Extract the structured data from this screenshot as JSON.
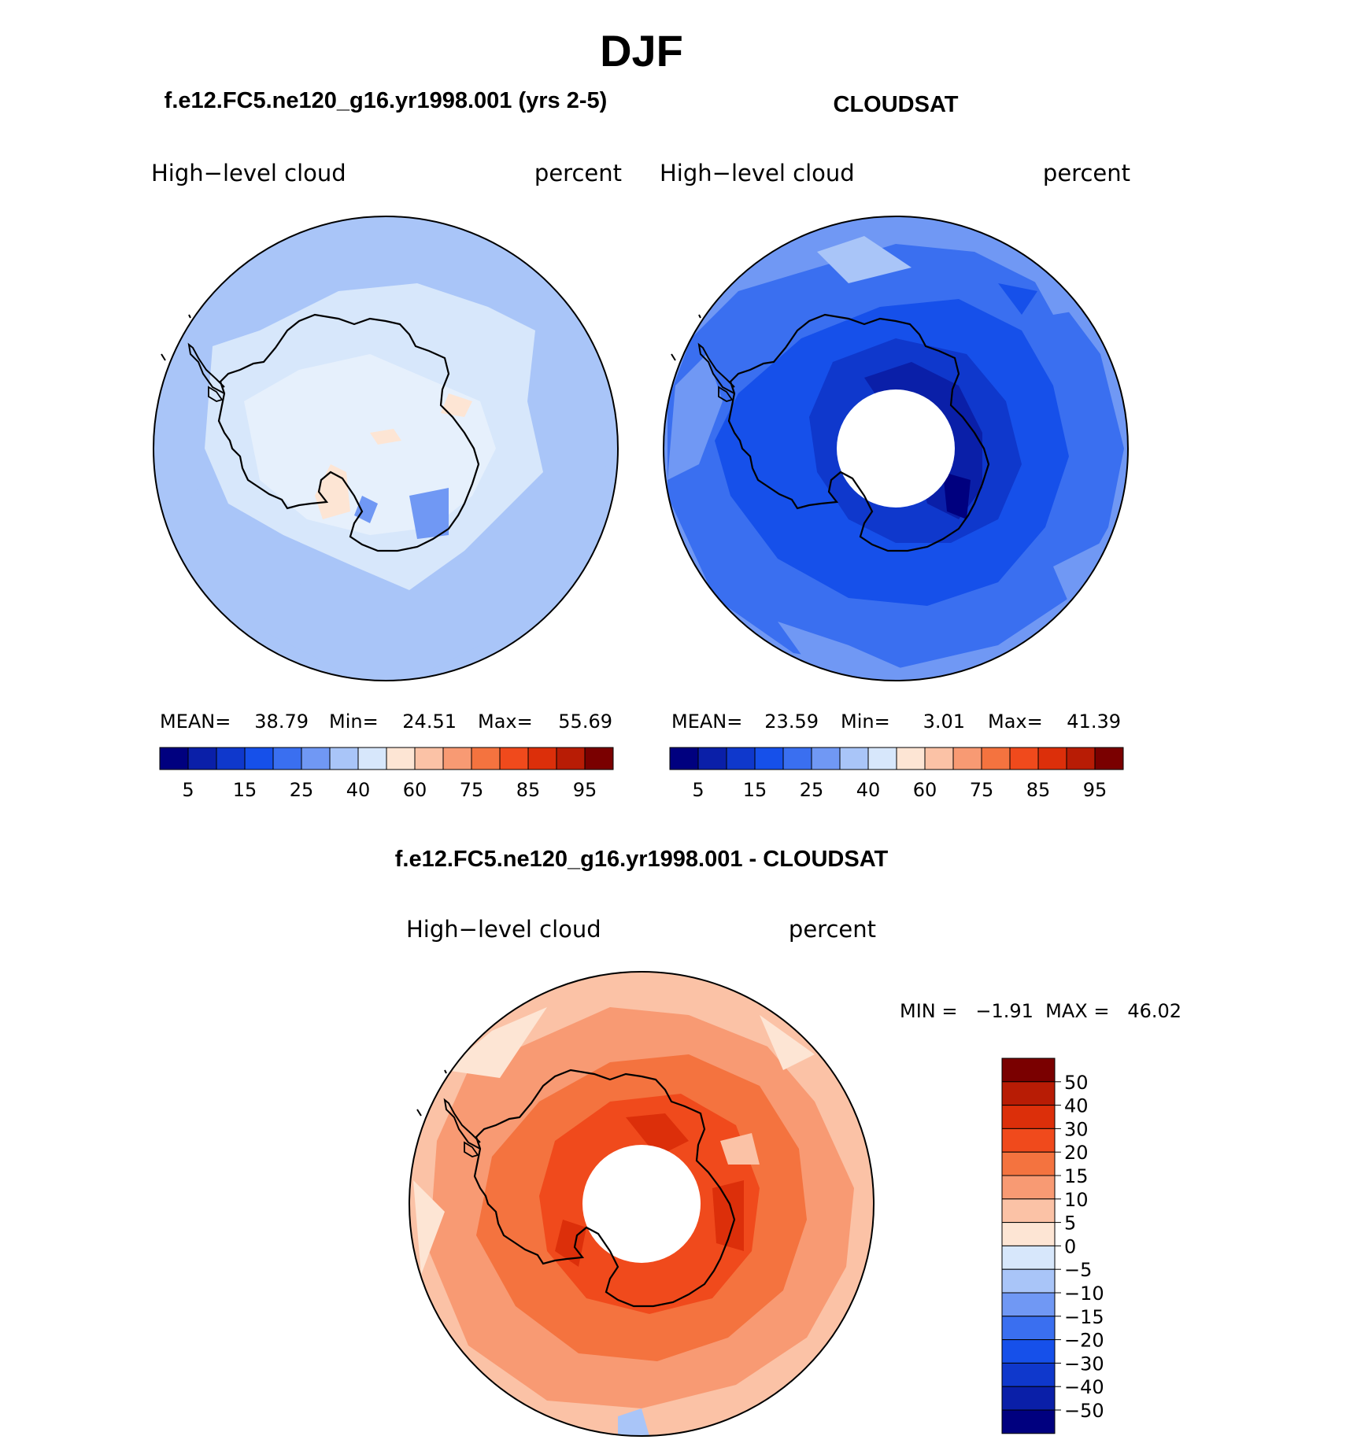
{
  "title": "DJF",
  "panels": {
    "model": {
      "title": "f.e12.FC5.ne120_g16.yr1998.001 (yrs 2-5)",
      "var_label": "High−level cloud",
      "units": "percent",
      "stats": {
        "mean_label": "MEAN=",
        "mean": "38.79",
        "min_label": "Min=",
        "min": "24.51",
        "max_label": "Max=",
        "max": "55.69"
      }
    },
    "obs": {
      "title": "CLOUDSAT",
      "var_label": "High−level cloud",
      "units": "percent",
      "stats": {
        "mean_label": "MEAN=",
        "mean": "23.59",
        "min_label": "Min=",
        "min": "3.01",
        "max_label": "Max=",
        "max": "41.39"
      }
    },
    "diff": {
      "title": "f.e12.FC5.ne120_g16.yr1998.001 - CLOUDSAT",
      "var_label": "High−level cloud",
      "units": "percent",
      "minmax_text": "MIN =   −1.91  MAX =   46.02"
    }
  },
  "abs_colorbar": {
    "colors": [
      "#00007f",
      "#0a1fa8",
      "#0f38cc",
      "#1650ea",
      "#3a6ff0",
      "#7098f4",
      "#a9c5f8",
      "#d7e7fb",
      "#fde5d4",
      "#fbc2a6",
      "#f89a73",
      "#f4733f",
      "#f04a1c",
      "#dc2f0a",
      "#b81c05",
      "#7a0000"
    ],
    "tick_labels": [
      "5",
      "15",
      "25",
      "40",
      "60",
      "75",
      "85",
      "95"
    ]
  },
  "diff_colorbar": {
    "colors": [
      "#7a0000",
      "#b81c05",
      "#dc2f0a",
      "#f04a1c",
      "#f4733f",
      "#f89a73",
      "#fbc2a6",
      "#fde5d4",
      "#d7e7fb",
      "#a9c5f8",
      "#7098f4",
      "#3a6ff0",
      "#1650ea",
      "#0f38cc",
      "#0a1fa8",
      "#00007f"
    ],
    "tick_labels": [
      "50",
      "40",
      "30",
      "20",
      "15",
      "10",
      "5",
      "0",
      "−5",
      "−10",
      "−15",
      "−20",
      "−30",
      "−40",
      "−50"
    ]
  }
}
